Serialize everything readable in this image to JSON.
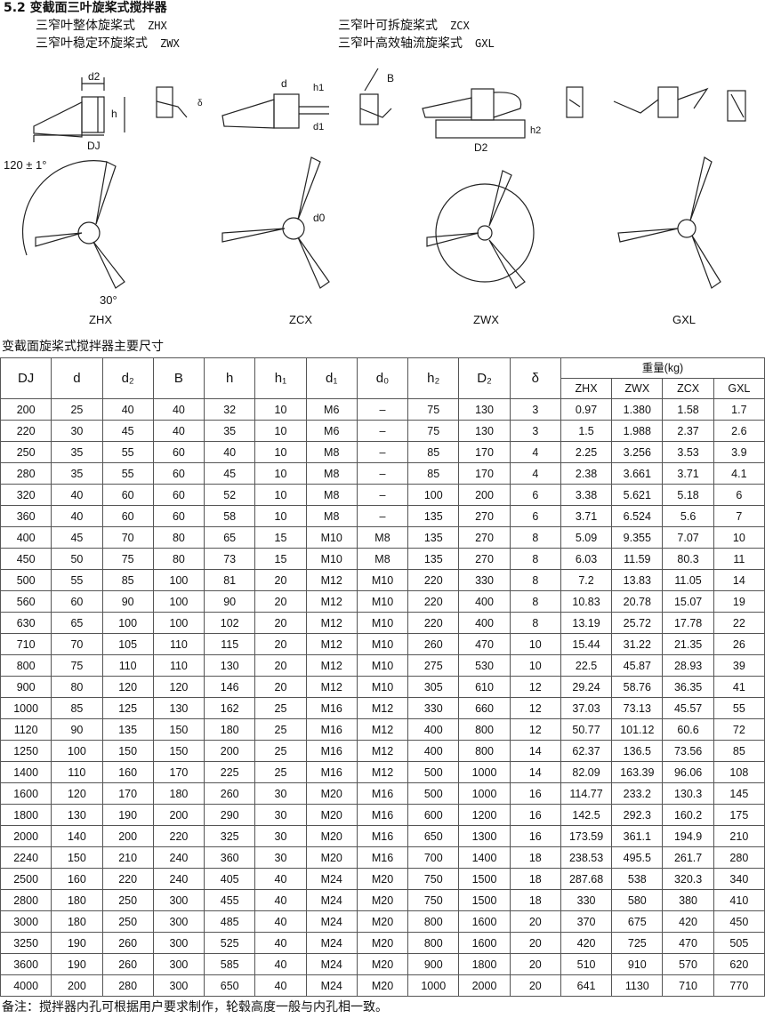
{
  "section_title": "5.2 变截面三叶旋桨式搅拌器",
  "types": [
    {
      "name": "三窄叶整体旋桨式",
      "code": "ZHX"
    },
    {
      "name": "三窄叶稳定环旋桨式",
      "code": "ZWX"
    },
    {
      "name": "三窄叶可拆旋桨式",
      "code": "ZCX"
    },
    {
      "name": "三窄叶高效轴流旋桨式",
      "code": "GXL"
    }
  ],
  "drawing_labels": {
    "d2": "d2",
    "h": "h",
    "DJ": "DJ",
    "delta": "δ",
    "d": "d",
    "h1": "h1",
    "d1": "d1",
    "B": "B",
    "h2": "h2",
    "D2": "D2",
    "angle": "120 ± 1°",
    "d0": "d0",
    "angle30": "30°",
    "zhx": "ZHX",
    "zcx": "ZCX",
    "zwx": "ZWX",
    "gxl": "GXL"
  },
  "table": {
    "title": "变截面旋桨式搅拌器主要尺寸",
    "columns": [
      "DJ",
      "d",
      "d₂",
      "B",
      "h",
      "h₁",
      "d₁",
      "d₀",
      "h₂",
      "D₂",
      "δ"
    ],
    "weight_header": "重量(kg)",
    "weight_columns": [
      "ZHX",
      "ZWX",
      "ZCX",
      "GXL"
    ],
    "rows": [
      [
        "200",
        "25",
        "40",
        "40",
        "32",
        "10",
        "M6",
        "–",
        "75",
        "130",
        "3",
        "0.97",
        "1.380",
        "1.58",
        "1.7"
      ],
      [
        "220",
        "30",
        "45",
        "40",
        "35",
        "10",
        "M6",
        "–",
        "75",
        "130",
        "3",
        "1.5",
        "1.988",
        "2.37",
        "2.6"
      ],
      [
        "250",
        "35",
        "55",
        "60",
        "40",
        "10",
        "M8",
        "–",
        "85",
        "170",
        "4",
        "2.25",
        "3.256",
        "3.53",
        "3.9"
      ],
      [
        "280",
        "35",
        "55",
        "60",
        "45",
        "10",
        "M8",
        "–",
        "85",
        "170",
        "4",
        "2.38",
        "3.661",
        "3.71",
        "4.1"
      ],
      [
        "320",
        "40",
        "60",
        "60",
        "52",
        "10",
        "M8",
        "–",
        "100",
        "200",
        "6",
        "3.38",
        "5.621",
        "5.18",
        "6"
      ],
      [
        "360",
        "40",
        "60",
        "60",
        "58",
        "10",
        "M8",
        "–",
        "135",
        "270",
        "6",
        "3.71",
        "6.524",
        "5.6",
        "7"
      ],
      [
        "400",
        "45",
        "70",
        "80",
        "65",
        "15",
        "M10",
        "M8",
        "135",
        "270",
        "8",
        "5.09",
        "9.355",
        "7.07",
        "10"
      ],
      [
        "450",
        "50",
        "75",
        "80",
        "73",
        "15",
        "M10",
        "M8",
        "135",
        "270",
        "8",
        "6.03",
        "11.59",
        "80.3",
        "11"
      ],
      [
        "500",
        "55",
        "85",
        "100",
        "81",
        "20",
        "M12",
        "M10",
        "220",
        "330",
        "8",
        "7.2",
        "13.83",
        "11.05",
        "14"
      ],
      [
        "560",
        "60",
        "90",
        "100",
        "90",
        "20",
        "M12",
        "M10",
        "220",
        "400",
        "8",
        "10.83",
        "20.78",
        "15.07",
        "19"
      ],
      [
        "630",
        "65",
        "100",
        "100",
        "102",
        "20",
        "M12",
        "M10",
        "220",
        "400",
        "8",
        "13.19",
        "25.72",
        "17.78",
        "22"
      ],
      [
        "710",
        "70",
        "105",
        "110",
        "115",
        "20",
        "M12",
        "M10",
        "260",
        "470",
        "10",
        "15.44",
        "31.22",
        "21.35",
        "26"
      ],
      [
        "800",
        "75",
        "110",
        "110",
        "130",
        "20",
        "M12",
        "M10",
        "275",
        "530",
        "10",
        "22.5",
        "45.87",
        "28.93",
        "39"
      ],
      [
        "900",
        "80",
        "120",
        "120",
        "146",
        "20",
        "M12",
        "M10",
        "305",
        "610",
        "12",
        "29.24",
        "58.76",
        "36.35",
        "41"
      ],
      [
        "1000",
        "85",
        "125",
        "130",
        "162",
        "25",
        "M16",
        "M12",
        "330",
        "660",
        "12",
        "37.03",
        "73.13",
        "45.57",
        "55"
      ],
      [
        "1120",
        "90",
        "135",
        "150",
        "180",
        "25",
        "M16",
        "M12",
        "400",
        "800",
        "12",
        "50.77",
        "101.12",
        "60.6",
        "72"
      ],
      [
        "1250",
        "100",
        "150",
        "150",
        "200",
        "25",
        "M16",
        "M12",
        "400",
        "800",
        "14",
        "62.37",
        "136.5",
        "73.56",
        "85"
      ],
      [
        "1400",
        "110",
        "160",
        "170",
        "225",
        "25",
        "M16",
        "M12",
        "500",
        "1000",
        "14",
        "82.09",
        "163.39",
        "96.06",
        "108"
      ],
      [
        "1600",
        "120",
        "170",
        "180",
        "260",
        "30",
        "M20",
        "M16",
        "500",
        "1000",
        "16",
        "114.77",
        "233.2",
        "130.3",
        "145"
      ],
      [
        "1800",
        "130",
        "190",
        "200",
        "290",
        "30",
        "M20",
        "M16",
        "600",
        "1200",
        "16",
        "142.5",
        "292.3",
        "160.2",
        "175"
      ],
      [
        "2000",
        "140",
        "200",
        "220",
        "325",
        "30",
        "M20",
        "M16",
        "650",
        "1300",
        "16",
        "173.59",
        "361.1",
        "194.9",
        "210"
      ],
      [
        "2240",
        "150",
        "210",
        "240",
        "360",
        "30",
        "M20",
        "M16",
        "700",
        "1400",
        "18",
        "238.53",
        "495.5",
        "261.7",
        "280"
      ],
      [
        "2500",
        "160",
        "220",
        "240",
        "405",
        "40",
        "M24",
        "M20",
        "750",
        "1500",
        "18",
        "287.68",
        "538",
        "320.3",
        "340"
      ],
      [
        "2800",
        "180",
        "250",
        "300",
        "455",
        "40",
        "M24",
        "M20",
        "750",
        "1500",
        "18",
        "330",
        "580",
        "380",
        "410"
      ],
      [
        "3000",
        "180",
        "250",
        "300",
        "485",
        "40",
        "M24",
        "M20",
        "800",
        "1600",
        "20",
        "370",
        "675",
        "420",
        "450"
      ],
      [
        "3250",
        "190",
        "260",
        "300",
        "525",
        "40",
        "M24",
        "M20",
        "800",
        "1600",
        "20",
        "420",
        "725",
        "470",
        "505"
      ],
      [
        "3600",
        "190",
        "260",
        "300",
        "585",
        "40",
        "M24",
        "M20",
        "900",
        "1800",
        "20",
        "510",
        "910",
        "570",
        "620"
      ],
      [
        "4000",
        "200",
        "280",
        "300",
        "650",
        "40",
        "M24",
        "M20",
        "1000",
        "2000",
        "20",
        "641",
        "1130",
        "710",
        "770"
      ]
    ]
  },
  "note": "备注：搅拌器内孔可根据用户要求制作，轮毂高度一般与内孔相一致。"
}
